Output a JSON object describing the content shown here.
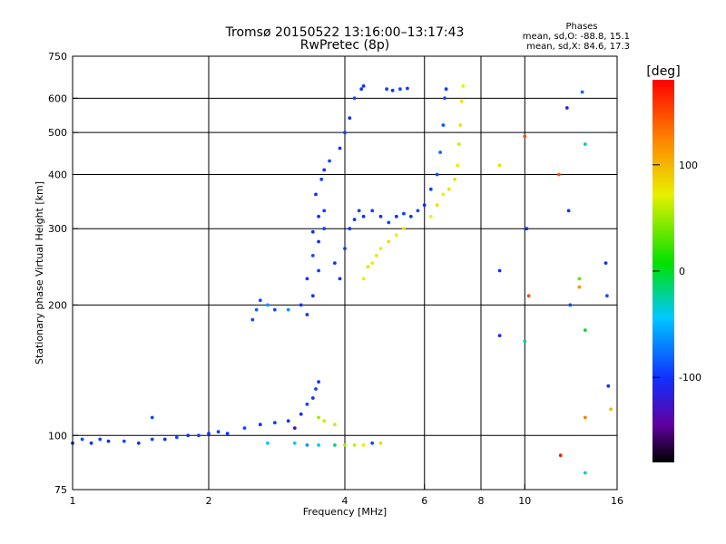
{
  "chart_data": {
    "type": "scatter",
    "title": "Tromsø 20150522 13:16:00–13:17:43",
    "subtitle": "RwPretec (8p)",
    "xlabel": "Frequency [MHz]",
    "ylabel": "Stationary phase Virtual Height [km]",
    "x_scale": "log",
    "y_scale": "log",
    "xlim": [
      1,
      16
    ],
    "ylim": [
      75,
      750
    ],
    "x_ticks": [
      {
        "value": 1,
        "label": "1"
      },
      {
        "value": 2,
        "label": "2"
      },
      {
        "value": 4,
        "label": "4"
      },
      {
        "value": 6,
        "label": "6"
      },
      {
        "value": 8,
        "label": "8"
      },
      {
        "value": 10,
        "label": "10"
      },
      {
        "value": 16,
        "label": "16"
      }
    ],
    "y_ticks": [
      {
        "value": 75,
        "label": "75"
      },
      {
        "value": 100,
        "label": "100"
      },
      {
        "value": 200,
        "label": "200"
      },
      {
        "value": 300,
        "label": "300"
      },
      {
        "value": 400,
        "label": "400"
      },
      {
        "value": 500,
        "label": "500"
      },
      {
        "value": 600,
        "label": "600"
      },
      {
        "value": 750,
        "label": "750"
      }
    ],
    "x_grid": [
      2,
      4,
      6,
      8,
      10
    ],
    "y_grid": [
      100,
      200,
      300,
      400,
      500,
      600
    ],
    "grid": true,
    "legend": {
      "title": "Phases",
      "line_O": "mean, sd,O: -88.8, 15.1",
      "line_X": "mean, sd,X:  84.6, 17.3"
    },
    "colorbar": {
      "label": "[deg]",
      "range": [
        -180,
        180
      ],
      "ticks": [
        {
          "value": 100,
          "label": "100"
        },
        {
          "value": 0,
          "label": "0"
        },
        {
          "value": -100,
          "label": "-100"
        }
      ]
    },
    "series": [
      {
        "points": [
          [
            1.0,
            96,
            -100
          ],
          [
            1.05,
            98,
            -90
          ],
          [
            1.1,
            96,
            -100
          ],
          [
            1.15,
            98,
            -95
          ],
          [
            1.2,
            97,
            -100
          ],
          [
            1.3,
            97,
            -90
          ],
          [
            1.4,
            96,
            -100
          ],
          [
            1.5,
            98,
            -95
          ],
          [
            1.6,
            98,
            -100
          ],
          [
            1.7,
            99,
            -90
          ],
          [
            1.8,
            100,
            -100
          ],
          [
            1.9,
            100,
            -95
          ],
          [
            2.0,
            101,
            -100
          ],
          [
            2.1,
            102,
            -95
          ],
          [
            2.2,
            101,
            -100
          ],
          [
            2.4,
            104,
            -90
          ],
          [
            2.6,
            106,
            -100
          ],
          [
            2.8,
            107,
            -95
          ],
          [
            3.0,
            108,
            -100
          ],
          [
            3.1,
            104,
            -130
          ],
          [
            3.2,
            112,
            -100
          ],
          [
            3.3,
            118,
            -90
          ],
          [
            3.4,
            122,
            -100
          ],
          [
            3.45,
            128,
            -95
          ],
          [
            3.5,
            110,
            50
          ],
          [
            3.6,
            108,
            60
          ],
          [
            3.8,
            106,
            60
          ],
          [
            1.5,
            110,
            -90
          ],
          [
            3.5,
            133,
            -100
          ]
        ]
      },
      {
        "points": [
          [
            2.7,
            96,
            -40
          ],
          [
            3.1,
            96,
            -40
          ],
          [
            3.3,
            95,
            -60
          ],
          [
            3.5,
            95,
            -40
          ],
          [
            3.8,
            95,
            -20
          ],
          [
            4.0,
            95,
            50
          ],
          [
            4.2,
            95,
            60
          ],
          [
            4.4,
            95,
            70
          ],
          [
            4.6,
            96,
            -90
          ],
          [
            4.8,
            96,
            80
          ]
        ]
      },
      {
        "points": [
          [
            2.5,
            185,
            -90
          ],
          [
            2.55,
            195,
            -80
          ],
          [
            2.6,
            205,
            -90
          ],
          [
            2.7,
            200,
            -60
          ],
          [
            2.8,
            195,
            -90
          ],
          [
            3.0,
            195,
            -60
          ],
          [
            3.2,
            200,
            -100
          ],
          [
            3.3,
            230,
            -100
          ],
          [
            3.4,
            260,
            -90
          ],
          [
            3.5,
            240,
            -95
          ],
          [
            3.3,
            190,
            -100
          ],
          [
            3.4,
            210,
            -100
          ],
          [
            3.5,
            280,
            -100
          ],
          [
            3.6,
            300,
            -90
          ],
          [
            3.4,
            295,
            -100
          ],
          [
            3.5,
            320,
            -100
          ],
          [
            3.6,
            330,
            -95
          ],
          [
            3.45,
            360,
            -100
          ],
          [
            3.55,
            390,
            -95
          ],
          [
            3.6,
            410,
            -100
          ],
          [
            3.7,
            430,
            -90
          ],
          [
            3.8,
            250,
            -100
          ],
          [
            3.9,
            230,
            -100
          ],
          [
            4.0,
            270,
            -95
          ],
          [
            4.1,
            300,
            -100
          ],
          [
            4.2,
            315,
            -100
          ],
          [
            4.3,
            330,
            -95
          ],
          [
            4.4,
            320,
            -100
          ],
          [
            4.6,
            330,
            -95
          ],
          [
            4.8,
            320,
            -100
          ],
          [
            5.0,
            310,
            -90
          ],
          [
            5.2,
            320,
            -100
          ],
          [
            5.4,
            325,
            -95
          ],
          [
            5.6,
            320,
            -100
          ],
          [
            5.8,
            330,
            -90
          ],
          [
            6.0,
            340,
            -100
          ],
          [
            6.2,
            370,
            -95
          ],
          [
            6.4,
            400,
            -90
          ],
          [
            6.5,
            450,
            -80
          ],
          [
            6.6,
            520,
            -85
          ],
          [
            6.65,
            600,
            -90
          ],
          [
            6.7,
            630,
            -95
          ],
          [
            3.9,
            460,
            -100
          ],
          [
            4.0,
            500,
            -95
          ],
          [
            4.1,
            540,
            -100
          ],
          [
            4.2,
            600,
            -90
          ],
          [
            4.35,
            630,
            -95
          ],
          [
            4.4,
            640,
            -100
          ],
          [
            4.95,
            630,
            -95
          ],
          [
            5.1,
            625,
            -100
          ],
          [
            5.3,
            630,
            -90
          ],
          [
            5.5,
            632,
            -95
          ]
        ]
      },
      {
        "points": [
          [
            4.4,
            230,
            70
          ],
          [
            4.5,
            245,
            80
          ],
          [
            4.6,
            250,
            70
          ],
          [
            4.7,
            260,
            75
          ],
          [
            4.8,
            270,
            70
          ],
          [
            5.0,
            280,
            80
          ],
          [
            5.2,
            290,
            70
          ],
          [
            5.4,
            300,
            75
          ],
          [
            6.2,
            320,
            70
          ],
          [
            6.4,
            340,
            80
          ],
          [
            6.6,
            360,
            70
          ],
          [
            6.8,
            370,
            75
          ],
          [
            7.0,
            390,
            80
          ],
          [
            7.1,
            420,
            70
          ],
          [
            7.15,
            470,
            60
          ],
          [
            7.2,
            520,
            80
          ],
          [
            7.25,
            590,
            75
          ],
          [
            7.3,
            640,
            70
          ]
        ]
      },
      {
        "points": [
          [
            8.8,
            420,
            80
          ],
          [
            8.8,
            240,
            -100
          ],
          [
            8.8,
            170,
            -110
          ],
          [
            10.0,
            490,
            150
          ],
          [
            10.1,
            300,
            -100
          ],
          [
            10.2,
            210,
            150
          ],
          [
            10.0,
            165,
            -20
          ],
          [
            11.9,
            400,
            150
          ],
          [
            12.0,
            90,
            170
          ],
          [
            12.4,
            570,
            -110
          ],
          [
            12.5,
            330,
            -100
          ],
          [
            12.6,
            200,
            -90
          ],
          [
            13.2,
            230,
            30
          ],
          [
            13.2,
            220,
            120
          ],
          [
            13.4,
            620,
            -80
          ],
          [
            13.6,
            470,
            -30
          ],
          [
            13.6,
            175,
            -10
          ],
          [
            13.6,
            110,
            130
          ],
          [
            13.6,
            82,
            -30
          ],
          [
            15.1,
            250,
            -100
          ],
          [
            15.2,
            210,
            -90
          ],
          [
            15.3,
            130,
            -100
          ],
          [
            15.5,
            115,
            100
          ]
        ]
      }
    ]
  }
}
